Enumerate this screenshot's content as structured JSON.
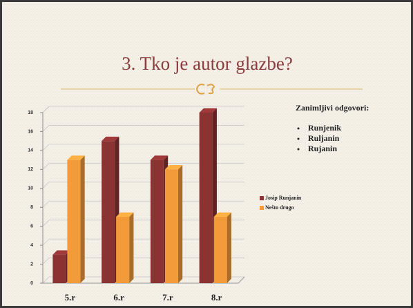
{
  "title": "3. Tko je autor glazbe?",
  "note": {
    "heading": "Zanimljivi odgovori:",
    "items": [
      "Runjenik",
      "Ruljanin",
      "Rujanin"
    ]
  },
  "chart_data": {
    "type": "bar",
    "categories": [
      "5.r",
      "6.r",
      "7.r",
      "8.r"
    ],
    "series": [
      {
        "name": "Josip Runjanin",
        "color": "#8b3232",
        "values": [
          3,
          15,
          13,
          18
        ]
      },
      {
        "name": "Nešto drugo",
        "color": "#f39a3a",
        "values": [
          13,
          7,
          12,
          7
        ]
      }
    ],
    "ylim": [
      0,
      18
    ],
    "yticks": [
      0,
      2,
      4,
      6,
      8,
      10,
      12,
      14,
      16,
      18
    ],
    "grid": true,
    "legend": "right"
  }
}
